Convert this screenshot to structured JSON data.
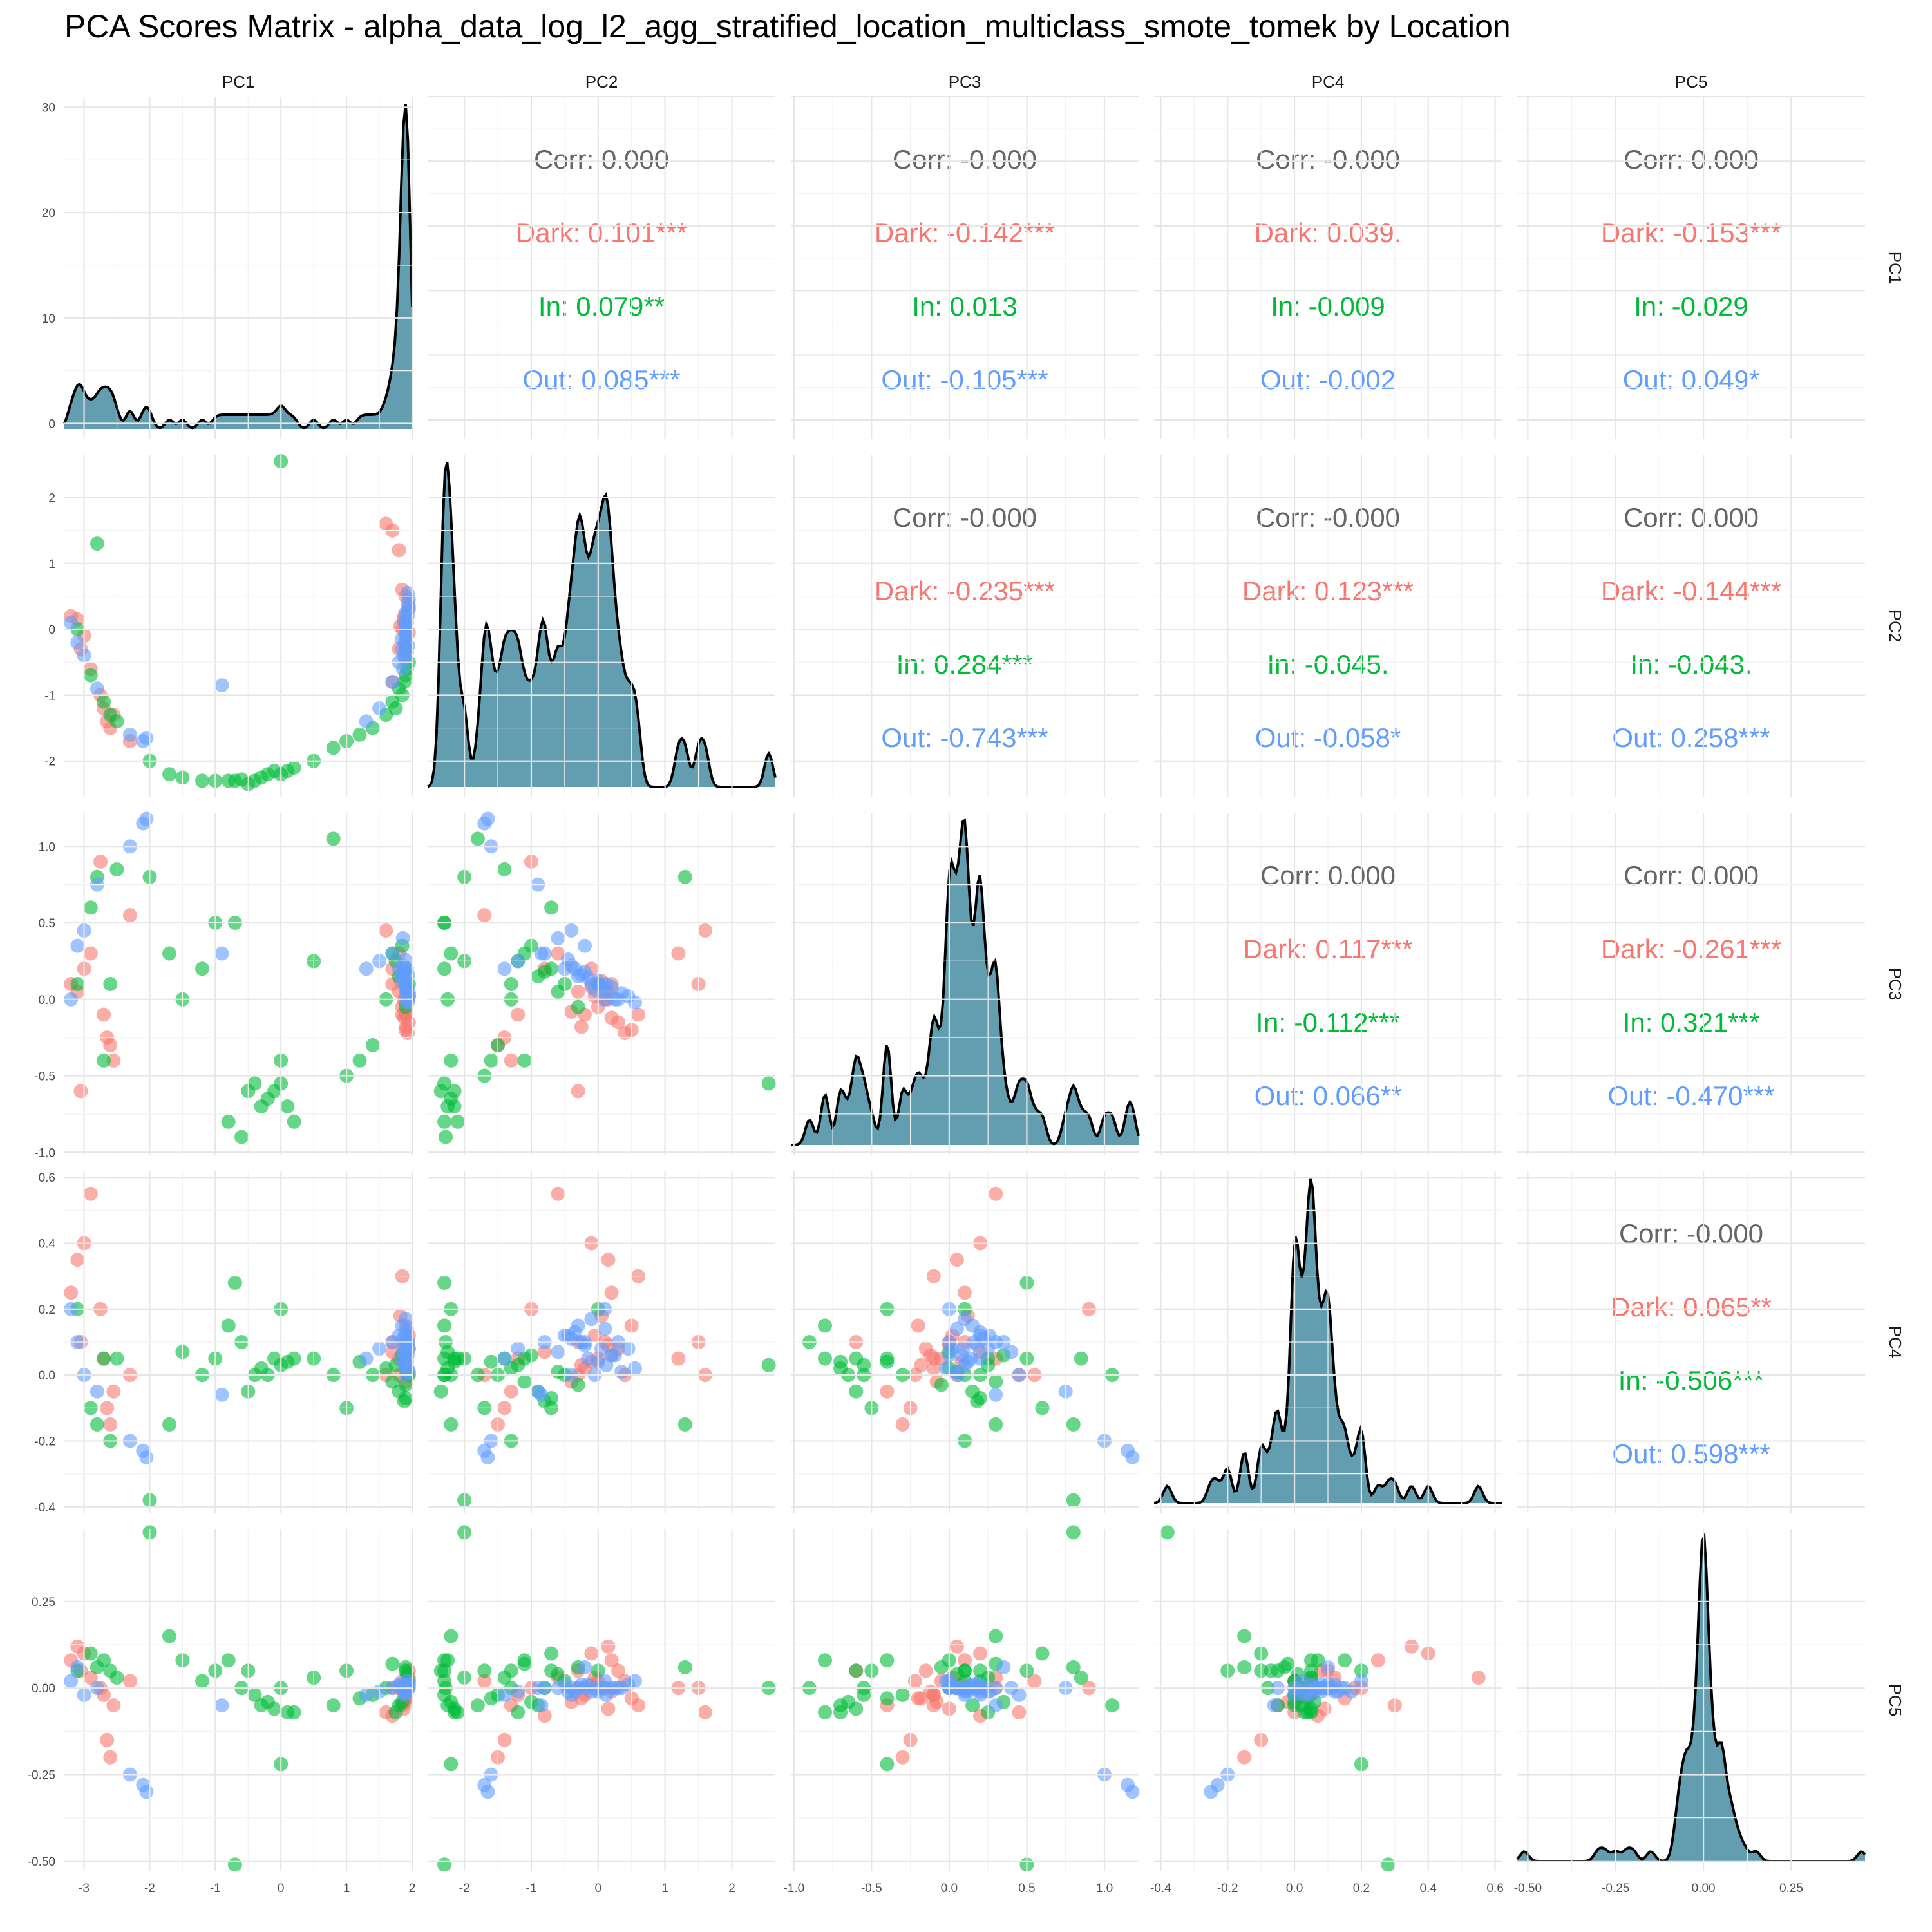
{
  "title": "PCA Scores Matrix - alpha_data_log_l2_agg_stratified_location_multiclass_smote_tomek by Location",
  "colors": {
    "Dark": "#F8766D",
    "In": "#00BA38",
    "Out": "#619CFF",
    "Corr": "#666666",
    "density_fill": "#2E7D95",
    "line": "#000000"
  },
  "chart_data": {
    "type": "scatter",
    "title": "PCA Scores Matrix - alpha_data_log_l2_agg_stratified_location_multiclass_smote_tomek by Location",
    "variables": [
      "PC1",
      "PC2",
      "PC3",
      "PC4",
      "PC5"
    ],
    "groups": [
      "Dark",
      "In",
      "Out"
    ],
    "ranges": {
      "PC1": [
        -3.3,
        2.0
      ],
      "PC2": [
        -2.55,
        2.65
      ],
      "PC3": [
        -1.02,
        1.22
      ],
      "PC4": [
        -0.42,
        0.62
      ],
      "PC5": [
        -0.53,
        0.46
      ]
    },
    "ticks": {
      "PC1": [
        -3,
        -2,
        -1,
        0,
        1,
        2
      ],
      "PC2": [
        -2,
        -1,
        0,
        1,
        2
      ],
      "PC3": [
        -1.0,
        -0.5,
        0.0,
        0.5,
        1.0
      ],
      "PC4": [
        -0.4,
        -0.2,
        0.0,
        0.2,
        0.4,
        0.6
      ],
      "PC5": [
        -0.5,
        -0.25,
        0.0,
        0.25
      ]
    },
    "tick_labels": {
      "PC1": [
        "-3",
        "-2",
        "-1",
        "0",
        "1",
        "2"
      ],
      "PC2": [
        "-2",
        "-1",
        "0",
        "1",
        "2"
      ],
      "PC3": [
        "-1.0",
        "-0.5",
        "0.0",
        "0.5",
        "1.0"
      ],
      "PC4": [
        "-0.4",
        "-0.2",
        "0.0",
        "0.2",
        "0.4",
        "0.6"
      ],
      "PC5": [
        "-0.50",
        "-0.25",
        "0.00",
        "0.25"
      ],
      "PC1_density_y": [
        "0",
        "10",
        "20",
        "30"
      ]
    },
    "pc1_density_ylim": [
      -1.5,
      31
    ],
    "correlations": [
      {
        "row": "PC1",
        "col": "PC2",
        "Corr": "Corr: 0.000",
        "Dark": "Dark: 0.101***",
        "In": "In: 0.079**",
        "Out": "Out: 0.085***"
      },
      {
        "row": "PC1",
        "col": "PC3",
        "Corr": "Corr: -0.000",
        "Dark": "Dark: -0.142***",
        "In": "In: 0.013",
        "Out": "Out: -0.105***"
      },
      {
        "row": "PC1",
        "col": "PC4",
        "Corr": "Corr: -0.000",
        "Dark": "Dark: 0.039.",
        "In": "In: -0.009",
        "Out": "Out: -0.002"
      },
      {
        "row": "PC1",
        "col": "PC5",
        "Corr": "Corr: 0.000",
        "Dark": "Dark: -0.153***",
        "In": "In: -0.029",
        "Out": "Out: 0.049*"
      },
      {
        "row": "PC2",
        "col": "PC3",
        "Corr": "Corr: -0.000",
        "Dark": "Dark: -0.235***",
        "In": "In: 0.284***",
        "Out": "Out: -0.743***"
      },
      {
        "row": "PC2",
        "col": "PC4",
        "Corr": "Corr: -0.000",
        "Dark": "Dark: 0.123***",
        "In": "In: -0.045.",
        "Out": "Out: -0.058*"
      },
      {
        "row": "PC2",
        "col": "PC5",
        "Corr": "Corr: 0.000",
        "Dark": "Dark: -0.144***",
        "In": "In: -0.043.",
        "Out": "Out: 0.258***"
      },
      {
        "row": "PC3",
        "col": "PC4",
        "Corr": "Corr: 0.000",
        "Dark": "Dark: 0.117***",
        "In": "In: -0.112***",
        "Out": "Out: 0.066**"
      },
      {
        "row": "PC3",
        "col": "PC5",
        "Corr": "Corr: 0.000",
        "Dark": "Dark: -0.261***",
        "In": "In: 0.321***",
        "Out": "Out: -0.470***"
      },
      {
        "row": "PC4",
        "col": "PC5",
        "Corr": "Corr: -0.000",
        "Dark": "Dark: 0.065**",
        "In": "In: -0.506***",
        "Out": "Out: 0.598***"
      }
    ],
    "points": [
      {
        "g": "Dark",
        "v": [
          -3.2,
          0.2,
          0.1,
          0.25,
          0.08
        ]
      },
      {
        "g": "Dark",
        "v": [
          -3.1,
          0.15,
          0.05,
          0.35,
          0.12
        ]
      },
      {
        "g": "Dark",
        "v": [
          -3.0,
          -0.1,
          0.2,
          0.4,
          0.1
        ]
      },
      {
        "g": "Dark",
        "v": [
          -2.9,
          -0.6,
          0.3,
          0.55,
          0.03
        ]
      },
      {
        "g": "Dark",
        "v": [
          -2.7,
          -1.2,
          -0.1,
          0.05,
          -0.02
        ]
      },
      {
        "g": "Dark",
        "v": [
          -2.65,
          -1.4,
          -0.25,
          -0.1,
          -0.15
        ]
      },
      {
        "g": "Dark",
        "v": [
          -2.6,
          -1.5,
          -0.3,
          -0.15,
          -0.2
        ]
      },
      {
        "g": "Dark",
        "v": [
          -2.75,
          -1.0,
          0.9,
          0.2,
          0.0
        ]
      },
      {
        "g": "Dark",
        "v": [
          -3.05,
          -0.3,
          -0.6,
          0.1,
          0.05
        ]
      },
      {
        "g": "Dark",
        "v": [
          -2.55,
          -1.3,
          -0.4,
          -0.05,
          -0.05
        ]
      },
      {
        "g": "Dark",
        "v": [
          -2.3,
          -1.7,
          0.55,
          0.0,
          0.02
        ]
      },
      {
        "g": "Dark",
        "v": [
          1.6,
          1.6,
          0.45,
          0.0,
          -0.07
        ]
      },
      {
        "g": "Dark",
        "v": [
          1.7,
          1.5,
          0.1,
          0.1,
          0.0
        ]
      },
      {
        "g": "Dark",
        "v": [
          1.8,
          1.2,
          0.3,
          0.05,
          0.0
        ]
      },
      {
        "g": "Dark",
        "v": [
          1.85,
          0.6,
          -0.1,
          0.3,
          -0.05
        ]
      },
      {
        "g": "Dark",
        "v": [
          1.9,
          0.5,
          -0.2,
          0.15,
          -0.03
        ]
      },
      {
        "g": "Dark",
        "v": [
          1.95,
          0.3,
          -0.15,
          0.08,
          0.05
        ]
      },
      {
        "g": "Dark",
        "v": [
          1.9,
          0.1,
          0.0,
          0.1,
          0.0
        ]
      },
      {
        "g": "Dark",
        "v": [
          1.85,
          0.0,
          -0.05,
          0.05,
          0.02
        ]
      },
      {
        "g": "Dark",
        "v": [
          1.9,
          -0.2,
          -0.1,
          0.02,
          -0.02
        ]
      },
      {
        "g": "Dark",
        "v": [
          1.8,
          -0.3,
          0.05,
          0.0,
          0.0
        ]
      },
      {
        "g": "Dark",
        "v": [
          1.9,
          -0.4,
          -0.08,
          -0.02,
          -0.04
        ]
      },
      {
        "g": "Dark",
        "v": [
          1.95,
          -0.05,
          0.02,
          0.12,
          0.03
        ]
      },
      {
        "g": "Dark",
        "v": [
          1.88,
          0.2,
          -0.12,
          0.06,
          -0.01
        ]
      },
      {
        "g": "Dark",
        "v": [
          1.92,
          -0.1,
          0.08,
          0.04,
          0.01
        ]
      },
      {
        "g": "Dark",
        "v": [
          1.87,
          0.15,
          0.0,
          0.09,
          -0.06
        ]
      },
      {
        "g": "Dark",
        "v": [
          1.7,
          -0.8,
          0.2,
          0.07,
          -0.08
        ]
      },
      {
        "g": "Dark",
        "v": [
          1.93,
          0.4,
          -0.22,
          0.0,
          0.02
        ]
      },
      {
        "g": "Dark",
        "v": [
          1.82,
          0.05,
          0.12,
          0.18,
          0.0
        ]
      },
      {
        "g": "Dark",
        "v": [
          1.91,
          -0.25,
          -0.18,
          0.03,
          -0.03
        ]
      },
      {
        "g": "In",
        "v": [
          -3.1,
          0.0,
          0.1,
          0.2,
          0.05
        ]
      },
      {
        "g": "In",
        "v": [
          -2.9,
          -0.7,
          0.6,
          -0.1,
          0.1
        ]
      },
      {
        "g": "In",
        "v": [
          -2.8,
          1.3,
          0.8,
          -0.15,
          0.06
        ]
      },
      {
        "g": "In",
        "v": [
          -2.7,
          -1.1,
          -0.4,
          0.05,
          0.08
        ]
      },
      {
        "g": "In",
        "v": [
          -2.6,
          -1.3,
          0.1,
          -0.2,
          0.05
        ]
      },
      {
        "g": "In",
        "v": [
          -2.5,
          -1.4,
          0.85,
          0.05,
          0.03
        ]
      },
      {
        "g": "In",
        "v": [
          -2.0,
          -2.0,
          0.8,
          -0.38,
          0.45
        ]
      },
      {
        "g": "In",
        "v": [
          -1.7,
          -2.2,
          0.3,
          -0.15,
          0.15
        ]
      },
      {
        "g": "In",
        "v": [
          -1.5,
          -2.25,
          0.0,
          0.07,
          0.08
        ]
      },
      {
        "g": "In",
        "v": [
          -1.2,
          -2.3,
          0.2,
          0.0,
          0.02
        ]
      },
      {
        "g": "In",
        "v": [
          -1.0,
          -2.3,
          0.5,
          0.05,
          0.05
        ]
      },
      {
        "g": "In",
        "v": [
          -0.8,
          -2.3,
          -0.8,
          0.15,
          0.08
        ]
      },
      {
        "g": "In",
        "v": [
          -0.7,
          -2.3,
          0.5,
          0.28,
          -0.51
        ]
      },
      {
        "g": "In",
        "v": [
          -0.6,
          -2.28,
          -0.9,
          0.1,
          0.0
        ]
      },
      {
        "g": "In",
        "v": [
          -0.5,
          -2.35,
          -0.6,
          -0.05,
          0.05
        ]
      },
      {
        "g": "In",
        "v": [
          -0.4,
          -2.3,
          -0.55,
          0.0,
          -0.02
        ]
      },
      {
        "g": "In",
        "v": [
          -0.3,
          -2.25,
          -0.7,
          0.02,
          -0.05
        ]
      },
      {
        "g": "In",
        "v": [
          -0.2,
          -2.2,
          -0.65,
          0.0,
          -0.04
        ]
      },
      {
        "g": "In",
        "v": [
          -0.1,
          -2.15,
          -0.6,
          0.05,
          -0.06
        ]
      },
      {
        "g": "In",
        "v": [
          0.0,
          -2.2,
          -0.4,
          0.2,
          -0.22
        ]
      },
      {
        "g": "In",
        "v": [
          0.0,
          2.55,
          -0.55,
          0.03,
          0.0
        ]
      },
      {
        "g": "In",
        "v": [
          0.1,
          -2.15,
          -0.7,
          0.04,
          -0.07
        ]
      },
      {
        "g": "In",
        "v": [
          0.2,
          -2.1,
          -0.8,
          0.05,
          -0.07
        ]
      },
      {
        "g": "In",
        "v": [
          0.5,
          -2.0,
          0.25,
          0.05,
          0.03
        ]
      },
      {
        "g": "In",
        "v": [
          0.8,
          -1.8,
          1.05,
          0.0,
          -0.05
        ]
      },
      {
        "g": "In",
        "v": [
          1.0,
          -1.7,
          -0.5,
          -0.1,
          0.05
        ]
      },
      {
        "g": "In",
        "v": [
          1.2,
          -1.6,
          -0.4,
          0.04,
          -0.03
        ]
      },
      {
        "g": "In",
        "v": [
          1.4,
          -1.5,
          -0.3,
          0.0,
          -0.02
        ]
      },
      {
        "g": "In",
        "v": [
          1.6,
          -1.3,
          0.0,
          0.02,
          0.0
        ]
      },
      {
        "g": "In",
        "v": [
          1.7,
          -1.1,
          0.3,
          -0.02,
          0.07
        ]
      },
      {
        "g": "In",
        "v": [
          1.8,
          -0.9,
          0.15,
          -0.05,
          -0.05
        ]
      },
      {
        "g": "In",
        "v": [
          1.9,
          -0.7,
          0.2,
          -0.07,
          0.05
        ]
      },
      {
        "g": "In",
        "v": [
          1.95,
          -0.5,
          0.1,
          0.0,
          0.02
        ]
      },
      {
        "g": "In",
        "v": [
          1.85,
          -1.0,
          0.35,
          0.06,
          -0.04
        ]
      },
      {
        "g": "In",
        "v": [
          1.9,
          -0.3,
          -0.05,
          -0.03,
          0.06
        ]
      },
      {
        "g": "In",
        "v": [
          1.75,
          -1.2,
          0.25,
          0.03,
          -0.07
        ]
      },
      {
        "g": "In",
        "v": [
          1.92,
          -0.6,
          0.05,
          0.01,
          0.04
        ]
      },
      {
        "g": "In",
        "v": [
          1.88,
          -0.8,
          0.18,
          -0.08,
          0.0
        ]
      },
      {
        "g": "Out",
        "v": [
          -3.2,
          0.1,
          0.0,
          0.2,
          0.02
        ]
      },
      {
        "g": "Out",
        "v": [
          -3.1,
          -0.2,
          0.35,
          0.1,
          0.06
        ]
      },
      {
        "g": "Out",
        "v": [
          -3.0,
          -0.4,
          0.45,
          0.0,
          -0.02
        ]
      },
      {
        "g": "Out",
        "v": [
          -2.8,
          -0.9,
          0.75,
          -0.05,
          0.0
        ]
      },
      {
        "g": "Out",
        "v": [
          -2.3,
          -1.6,
          1.0,
          -0.2,
          -0.25
        ]
      },
      {
        "g": "Out",
        "v": [
          -2.1,
          -1.7,
          1.15,
          -0.23,
          -0.28
        ]
      },
      {
        "g": "Out",
        "v": [
          -2.05,
          -1.65,
          1.18,
          -0.25,
          -0.3
        ]
      },
      {
        "g": "Out",
        "v": [
          -0.9,
          -0.85,
          0.3,
          -0.06,
          -0.05
        ]
      },
      {
        "g": "Out",
        "v": [
          1.3,
          -1.4,
          0.2,
          0.05,
          -0.02
        ]
      },
      {
        "g": "Out",
        "v": [
          1.5,
          -1.2,
          0.25,
          0.08,
          -0.01
        ]
      },
      {
        "g": "Out",
        "v": [
          1.7,
          -0.8,
          0.3,
          0.1,
          0.0
        ]
      },
      {
        "g": "Out",
        "v": [
          1.8,
          -0.5,
          0.2,
          0.12,
          0.01
        ]
      },
      {
        "g": "Out",
        "v": [
          1.85,
          -0.3,
          0.15,
          0.15,
          0.0
        ]
      },
      {
        "g": "Out",
        "v": [
          1.9,
          -0.1,
          0.1,
          0.17,
          -0.01
        ]
      },
      {
        "g": "Out",
        "v": [
          1.92,
          0.1,
          0.05,
          0.14,
          0.0
        ]
      },
      {
        "g": "Out",
        "v": [
          1.94,
          0.3,
          0.0,
          0.1,
          0.0
        ]
      },
      {
        "g": "Out",
        "v": [
          1.95,
          0.45,
          0.02,
          0.08,
          0.01
        ]
      },
      {
        "g": "Out",
        "v": [
          1.93,
          0.2,
          0.08,
          0.06,
          0.0
        ]
      },
      {
        "g": "Out",
        "v": [
          1.91,
          0.0,
          0.12,
          0.04,
          -0.01
        ]
      },
      {
        "g": "Out",
        "v": [
          1.89,
          -0.2,
          0.18,
          0.09,
          0.0
        ]
      },
      {
        "g": "Out",
        "v": [
          1.87,
          -0.4,
          0.22,
          0.11,
          0.0
        ]
      },
      {
        "g": "Out",
        "v": [
          1.86,
          -0.6,
          0.4,
          0.07,
          0.0
        ]
      },
      {
        "g": "Out",
        "v": [
          1.93,
          0.55,
          -0.02,
          0.02,
          0.02
        ]
      },
      {
        "g": "Out",
        "v": [
          1.9,
          -0.05,
          0.06,
          0.0,
          0.0
        ]
      },
      {
        "g": "Out",
        "v": [
          1.88,
          0.12,
          0.1,
          0.03,
          -0.02
        ]
      },
      {
        "g": "Out",
        "v": [
          1.84,
          -0.15,
          0.14,
          0.05,
          0.01
        ]
      },
      {
        "g": "Out",
        "v": [
          1.95,
          0.35,
          0.04,
          0.01,
          0.0
        ]
      },
      {
        "g": "Out",
        "v": [
          1.92,
          -0.35,
          0.2,
          0.13,
          -0.01
        ]
      },
      {
        "g": "Out",
        "v": [
          1.9,
          0.25,
          0.0,
          0.06,
          0.0
        ]
      },
      {
        "g": "Out",
        "v": [
          1.94,
          -0.25,
          0.16,
          0.1,
          0.01
        ]
      },
      {
        "g": "Out",
        "v": [
          1.91,
          0.05,
          0.09,
          0.08,
          0.0
        ]
      },
      {
        "g": "Out",
        "v": [
          1.89,
          -0.45,
          0.26,
          0.12,
          -0.01
        ]
      }
    ]
  }
}
